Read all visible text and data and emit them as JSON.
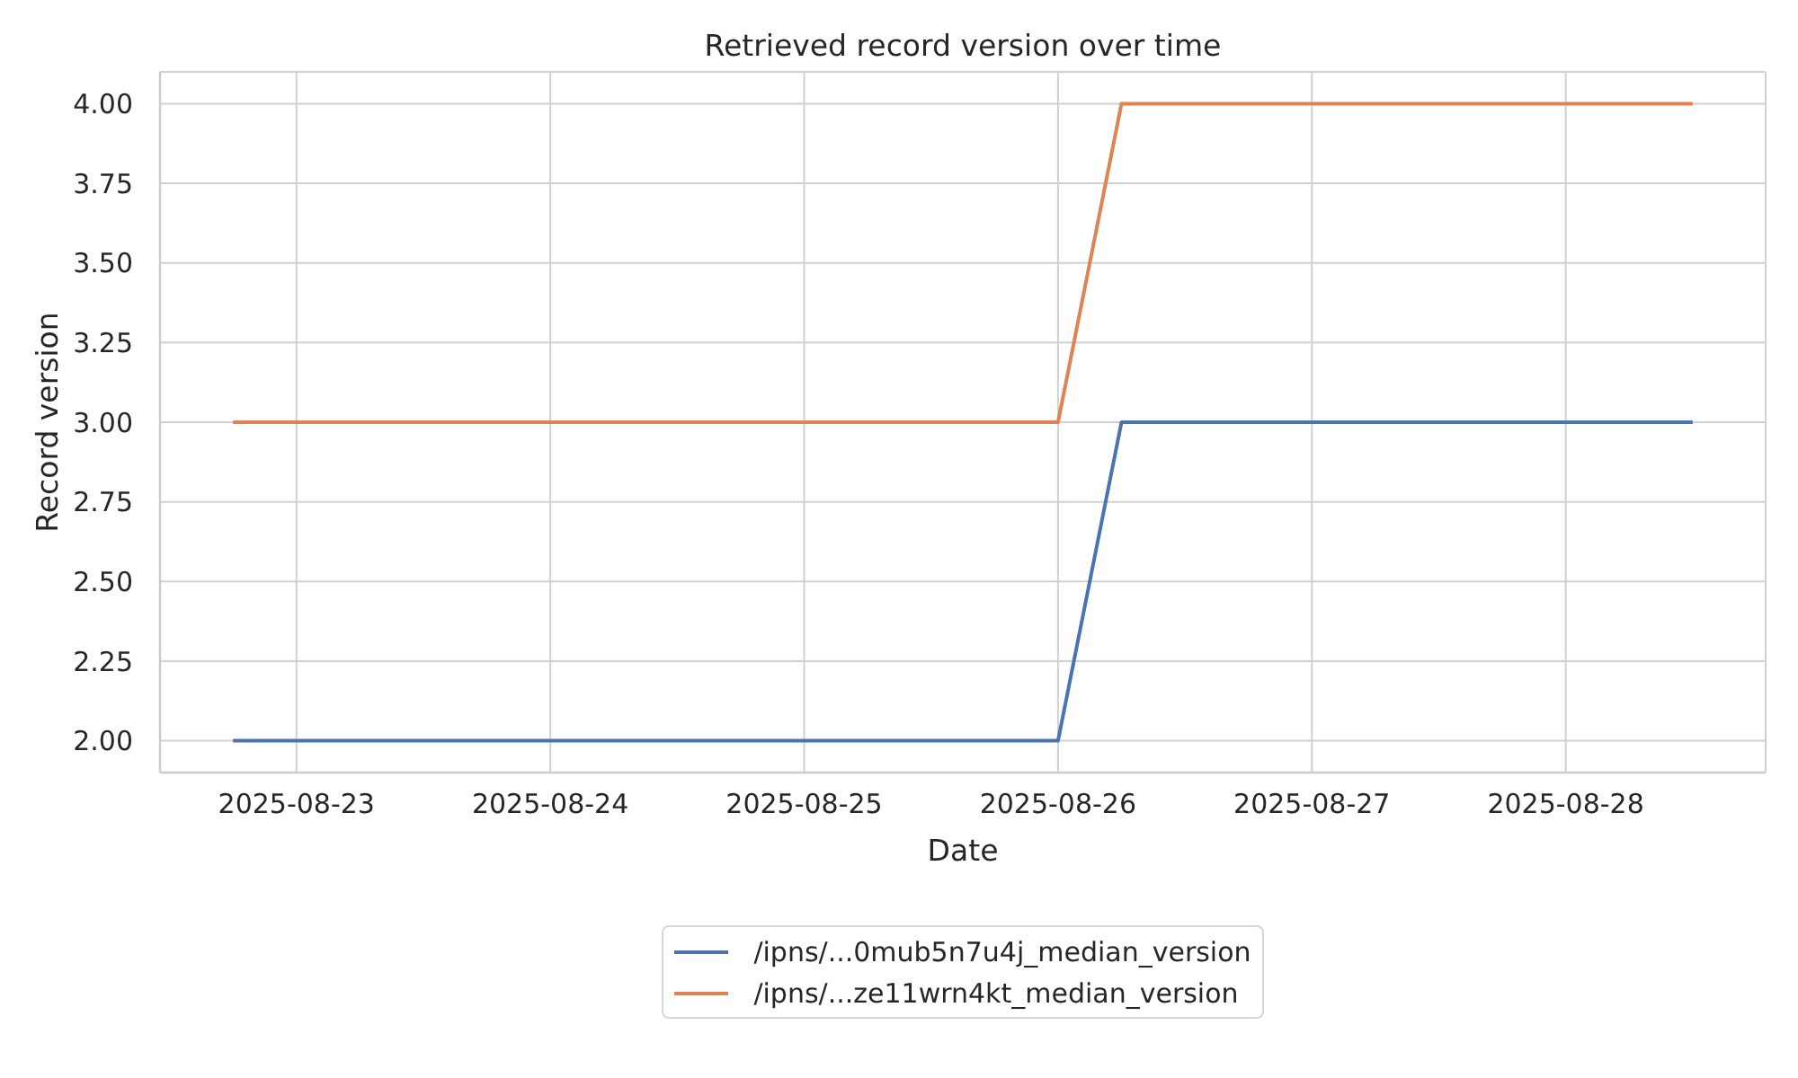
{
  "chart_data": {
    "type": "line",
    "title": "Retrieved record version over time",
    "xlabel": "Date",
    "ylabel": "Record version",
    "x": [
      "2025-08-22T18:00",
      "2025-08-26T00:00",
      "2025-08-26T06:00",
      "2025-08-28T12:00"
    ],
    "series": [
      {
        "name": "/ipns/...0mub5n7u4j_median_version",
        "color": "#4c72b0",
        "values": [
          2,
          2,
          3,
          3
        ]
      },
      {
        "name": "/ipns/...ze11wrn4kt_median_version",
        "color": "#dd8452",
        "values": [
          3,
          3,
          4,
          4
        ]
      }
    ],
    "xlim": [
      "2025-08-22T11:06",
      "2025-08-28T18:54"
    ],
    "xticks": [
      "2025-08-23",
      "2025-08-24",
      "2025-08-25",
      "2025-08-26",
      "2025-08-27",
      "2025-08-28"
    ],
    "ylim": [
      1.9,
      4.1
    ],
    "yticks": [
      {
        "value": 2,
        "label": "2.00"
      },
      2.25,
      {
        "value": 2.5,
        "label": "2.50"
      },
      2.75,
      {
        "value": 3,
        "label": "3.00"
      },
      3.25,
      {
        "value": 3.5,
        "label": "3.50"
      },
      3.75,
      {
        "value": 4,
        "label": "4.00"
      }
    ],
    "grid": true,
    "legend": "bottom"
  }
}
